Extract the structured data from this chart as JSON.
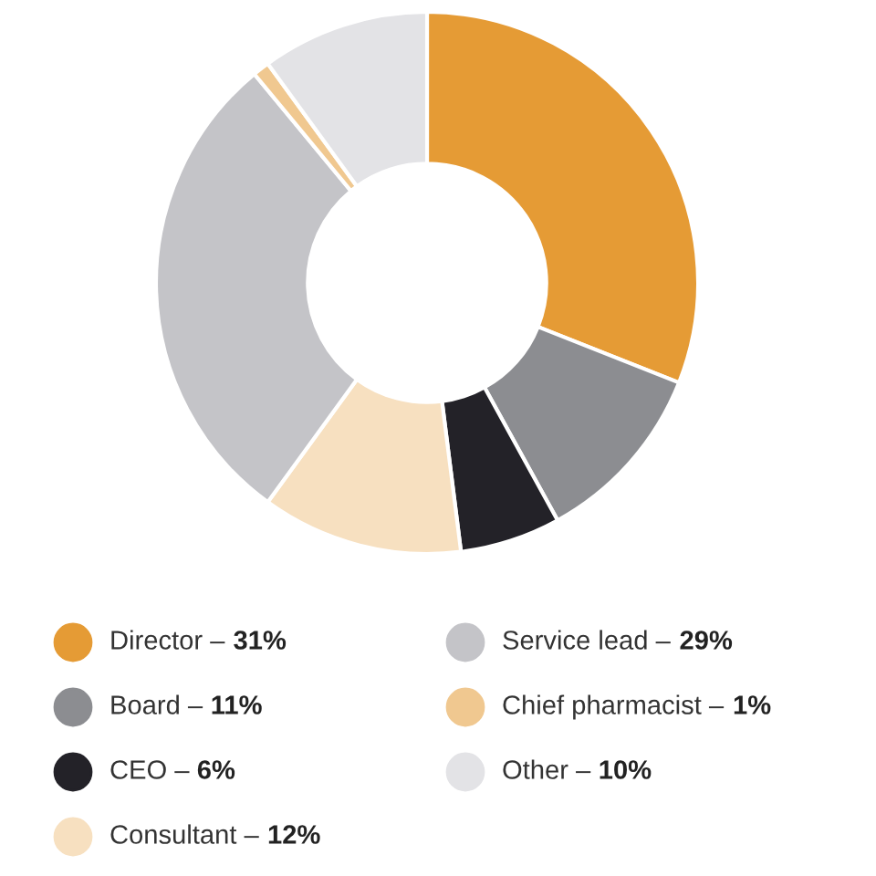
{
  "chart_data": {
    "type": "donut",
    "categories": [
      "Director –",
      "Board –",
      "CEO –",
      "Consultant –",
      "Service lead –",
      "Chief pharmacist –",
      "Other –"
    ],
    "values": [
      31,
      11,
      6,
      12,
      29,
      1,
      10
    ],
    "value_labels": [
      "31%",
      "11%",
      "6%",
      "12%",
      "29%",
      "1%",
      "10%"
    ],
    "colors": [
      "#e59b35",
      "#8c8d91",
      "#232228",
      "#f7e0c0",
      "#c4c4c8",
      "#f0c890",
      "#e3e3e6"
    ],
    "legend": "bottom"
  }
}
